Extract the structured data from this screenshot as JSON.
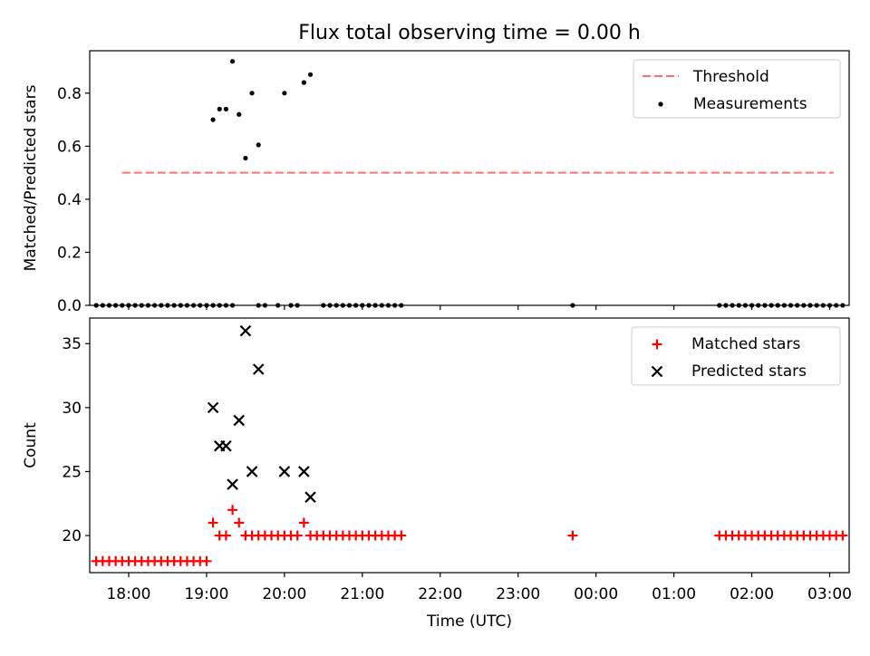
{
  "title": "Flux total observing time = 0.00 h",
  "colors": {
    "threshold": "#ff7070",
    "measurement": "#000000",
    "matched": "#ff0000",
    "predicted": "#000000"
  },
  "chart_data": [
    {
      "type": "scatter",
      "ylabel": "Matched/Predicted stars",
      "xlim": [
        -30,
        555
      ],
      "ylim": [
        0,
        0.96
      ],
      "yticks": [
        0.0,
        0.2,
        0.4,
        0.6,
        0.8
      ],
      "ytick_labels": [
        "0.0",
        "0.2",
        "0.4",
        "0.6",
        "0.8"
      ],
      "legend": {
        "position": "top-right",
        "entries": [
          "Threshold",
          "Measurements"
        ]
      },
      "grid": false,
      "threshold": {
        "name": "Threshold",
        "value": 0.5,
        "x_range": [
          -5,
          543
        ],
        "style": "dashed"
      },
      "series": [
        {
          "name": "Measurements",
          "marker": "dot",
          "points": [
            [
              -25,
              0
            ],
            [
              -20,
              0
            ],
            [
              -15,
              0
            ],
            [
              -10,
              0
            ],
            [
              -5,
              0
            ],
            [
              0,
              0
            ],
            [
              5,
              0
            ],
            [
              10,
              0
            ],
            [
              15,
              0
            ],
            [
              20,
              0
            ],
            [
              25,
              0
            ],
            [
              30,
              0
            ],
            [
              35,
              0
            ],
            [
              40,
              0
            ],
            [
              45,
              0
            ],
            [
              50,
              0
            ],
            [
              55,
              0
            ],
            [
              60,
              0
            ],
            [
              65,
              0
            ],
            [
              70,
              0
            ],
            [
              75,
              0
            ],
            [
              80,
              0
            ],
            [
              65,
              0.7
            ],
            [
              70,
              0.74
            ],
            [
              75,
              0.74
            ],
            [
              80,
              0.92
            ],
            [
              85,
              0.72
            ],
            [
              90,
              0.555
            ],
            [
              95,
              0.8
            ],
            [
              100,
              0.605
            ],
            [
              120,
              0.8
            ],
            [
              135,
              0.84
            ],
            [
              140,
              0.87
            ],
            [
              100,
              0
            ],
            [
              105,
              0
            ],
            [
              115,
              0
            ],
            [
              125,
              0
            ],
            [
              130,
              0
            ],
            [
              150,
              0
            ],
            [
              155,
              0
            ],
            [
              160,
              0
            ],
            [
              165,
              0
            ],
            [
              170,
              0
            ],
            [
              175,
              0
            ],
            [
              180,
              0
            ],
            [
              185,
              0
            ],
            [
              190,
              0
            ],
            [
              195,
              0
            ],
            [
              200,
              0
            ],
            [
              205,
              0
            ],
            [
              210,
              0
            ],
            [
              342,
              0
            ],
            [
              455,
              0
            ],
            [
              460,
              0
            ],
            [
              465,
              0
            ],
            [
              470,
              0
            ],
            [
              475,
              0
            ],
            [
              480,
              0
            ],
            [
              485,
              0
            ],
            [
              490,
              0
            ],
            [
              495,
              0
            ],
            [
              500,
              0
            ],
            [
              505,
              0
            ],
            [
              510,
              0
            ],
            [
              515,
              0
            ],
            [
              520,
              0
            ],
            [
              525,
              0
            ],
            [
              530,
              0
            ],
            [
              535,
              0
            ],
            [
              540,
              0
            ],
            [
              545,
              0
            ],
            [
              550,
              0
            ]
          ]
        }
      ]
    },
    {
      "type": "scatter",
      "xlabel": "Time (UTC)",
      "ylabel": "Count",
      "xlim": [
        -30,
        555
      ],
      "ylim": [
        17.1,
        37.0
      ],
      "yticks": [
        20,
        25,
        30,
        35
      ],
      "ytick_labels": [
        "20",
        "25",
        "30",
        "35"
      ],
      "xticks": [
        0,
        60,
        120,
        180,
        240,
        300,
        360,
        420,
        480,
        540
      ],
      "xtick_labels": [
        "18:00",
        "19:00",
        "20:00",
        "21:00",
        "22:00",
        "23:00",
        "00:00",
        "01:00",
        "02:00",
        "03:00"
      ],
      "legend": {
        "position": "top-right",
        "entries": [
          "Matched stars",
          "Predicted stars"
        ]
      },
      "grid": false,
      "series": [
        {
          "name": "Matched stars",
          "marker": "plus",
          "points": [
            [
              -25,
              18
            ],
            [
              -20,
              18
            ],
            [
              -15,
              18
            ],
            [
              -10,
              18
            ],
            [
              -5,
              18
            ],
            [
              0,
              18
            ],
            [
              5,
              18
            ],
            [
              10,
              18
            ],
            [
              15,
              18
            ],
            [
              20,
              18
            ],
            [
              25,
              18
            ],
            [
              30,
              18
            ],
            [
              35,
              18
            ],
            [
              40,
              18
            ],
            [
              45,
              18
            ],
            [
              50,
              18
            ],
            [
              55,
              18
            ],
            [
              60,
              18
            ],
            [
              65,
              21
            ],
            [
              70,
              20
            ],
            [
              75,
              20
            ],
            [
              80,
              22
            ],
            [
              85,
              21
            ],
            [
              90,
              20
            ],
            [
              95,
              20
            ],
            [
              100,
              20
            ],
            [
              105,
              20
            ],
            [
              110,
              20
            ],
            [
              115,
              20
            ],
            [
              120,
              20
            ],
            [
              125,
              20
            ],
            [
              130,
              20
            ],
            [
              135,
              21
            ],
            [
              140,
              20
            ],
            [
              145,
              20
            ],
            [
              150,
              20
            ],
            [
              155,
              20
            ],
            [
              160,
              20
            ],
            [
              165,
              20
            ],
            [
              170,
              20
            ],
            [
              175,
              20
            ],
            [
              180,
              20
            ],
            [
              185,
              20
            ],
            [
              190,
              20
            ],
            [
              195,
              20
            ],
            [
              200,
              20
            ],
            [
              205,
              20
            ],
            [
              210,
              20
            ],
            [
              342,
              20
            ],
            [
              455,
              20
            ],
            [
              460,
              20
            ],
            [
              465,
              20
            ],
            [
              470,
              20
            ],
            [
              475,
              20
            ],
            [
              480,
              20
            ],
            [
              485,
              20
            ],
            [
              490,
              20
            ],
            [
              495,
              20
            ],
            [
              500,
              20
            ],
            [
              505,
              20
            ],
            [
              510,
              20
            ],
            [
              515,
              20
            ],
            [
              520,
              20
            ],
            [
              525,
              20
            ],
            [
              530,
              20
            ],
            [
              535,
              20
            ],
            [
              540,
              20
            ],
            [
              545,
              20
            ],
            [
              550,
              20
            ]
          ]
        },
        {
          "name": "Predicted stars",
          "marker": "x",
          "points": [
            [
              65,
              30
            ],
            [
              70,
              27
            ],
            [
              75,
              27
            ],
            [
              80,
              24
            ],
            [
              85,
              29
            ],
            [
              90,
              36
            ],
            [
              95,
              25
            ],
            [
              100,
              33
            ],
            [
              120,
              25
            ],
            [
              135,
              25
            ],
            [
              140,
              23
            ]
          ]
        }
      ]
    }
  ]
}
